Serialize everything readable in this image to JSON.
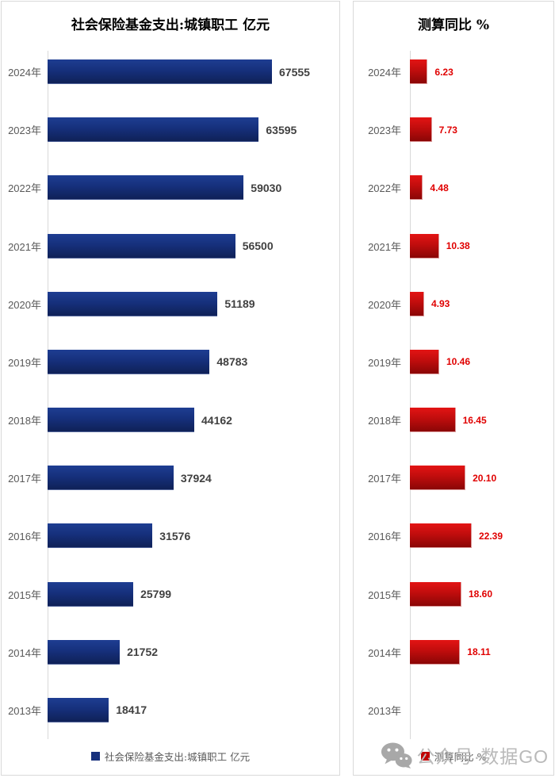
{
  "page": {
    "background": "#ffffff",
    "panel_border_color": "#d9d9d9"
  },
  "chart_data": [
    {
      "type": "bar",
      "orientation": "horizontal",
      "title": "社会保险基金支出:城镇职工 亿元",
      "legend": "社会保险基金支出:城镇职工 亿元",
      "legend_position": "bottom",
      "grid": false,
      "xlim": [
        0,
        80000
      ],
      "categories": [
        "2024年",
        "2023年",
        "2022年",
        "2021年",
        "2020年",
        "2019年",
        "2018年",
        "2017年",
        "2016年",
        "2015年",
        "2014年",
        "2013年"
      ],
      "values": [
        67555,
        63595,
        59030,
        56500,
        51189,
        48783,
        44162,
        37924,
        31576,
        25799,
        21752,
        18417
      ],
      "value_labels": [
        "67555",
        "63595",
        "59030",
        "56500",
        "51189",
        "48783",
        "44162",
        "37924",
        "31576",
        "25799",
        "21752",
        "18417"
      ],
      "bar_color": "#16307c",
      "value_label_color": "#404040",
      "category_label_color": "#595959"
    },
    {
      "type": "bar",
      "orientation": "horizontal",
      "title": "测算同比 %",
      "legend": "测算同比 %",
      "legend_position": "bottom",
      "grid": false,
      "xlim": [
        0,
        25
      ],
      "categories": [
        "2024年",
        "2023年",
        "2022年",
        "2021年",
        "2020年",
        "2019年",
        "2018年",
        "2017年",
        "2016年",
        "2015年",
        "2014年",
        "2013年"
      ],
      "values": [
        6.23,
        7.73,
        4.48,
        10.38,
        4.93,
        10.46,
        16.45,
        20.1,
        22.39,
        18.6,
        18.11,
        null
      ],
      "value_labels": [
        "6.23",
        "7.73",
        "4.48",
        "10.38",
        "4.93",
        "10.46",
        "16.45",
        "20.10",
        "22.39",
        "18.60",
        "18.11",
        ""
      ],
      "bar_color": "#c00000",
      "value_label_color": "#e00000",
      "category_label_color": "#595959"
    }
  ],
  "watermark": {
    "icon": "wechat-icon",
    "text": "公众号·数据GO",
    "color": "#b9b9b9"
  }
}
